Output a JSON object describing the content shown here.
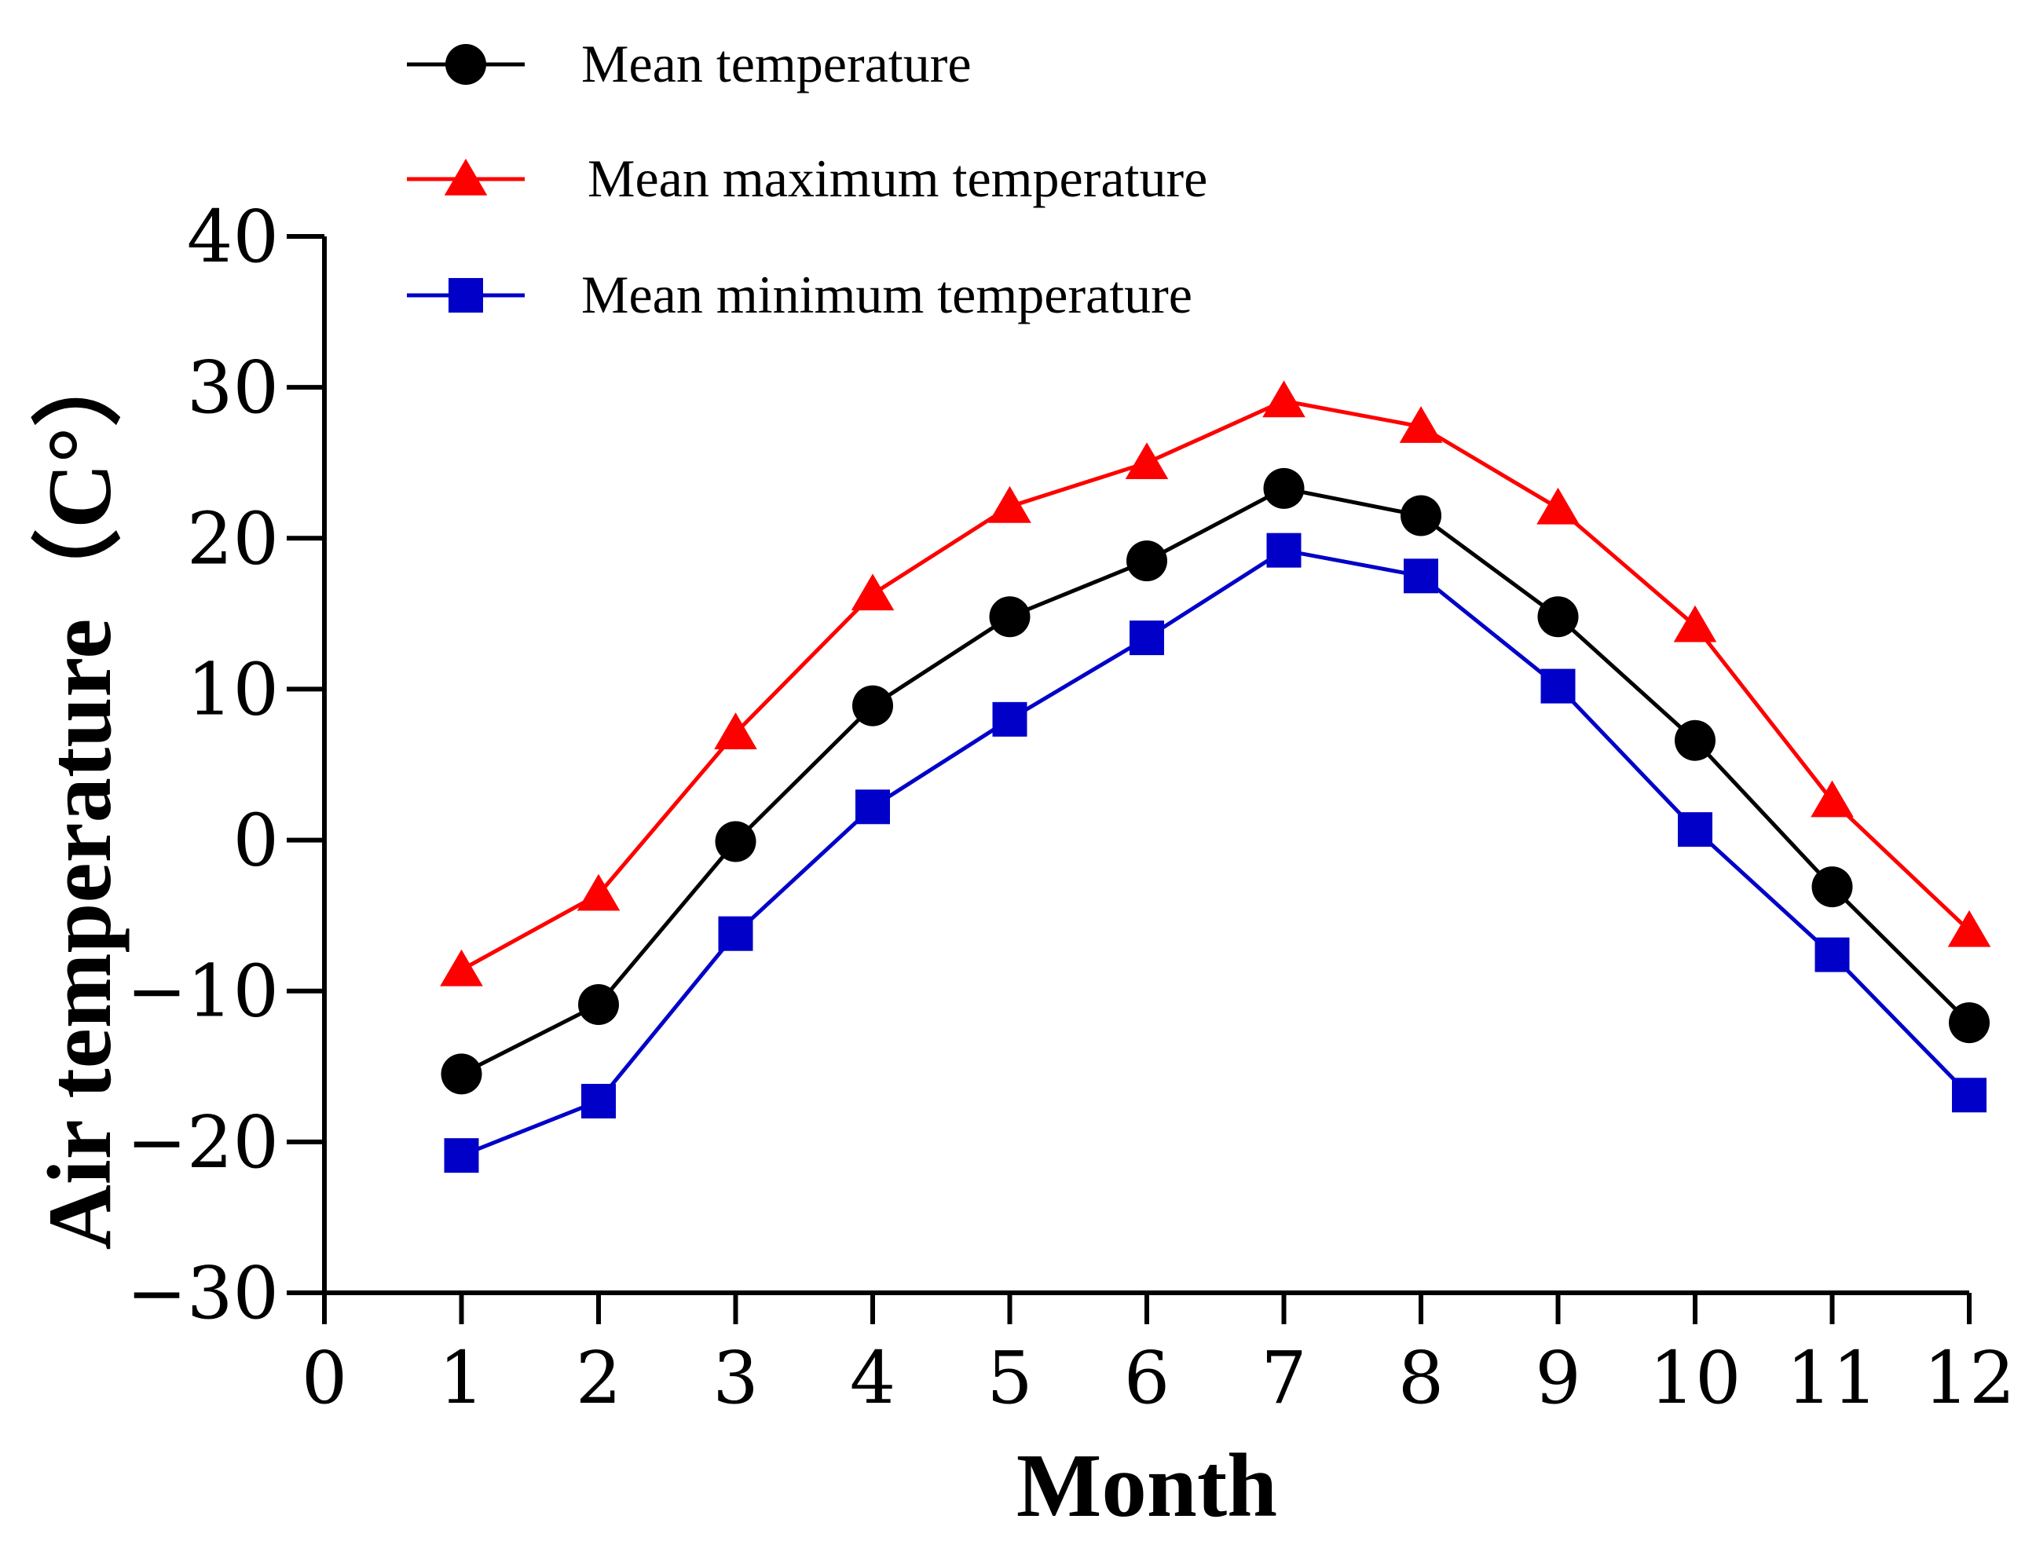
{
  "chart_data": {
    "type": "line",
    "title": "",
    "xlabel": "Month",
    "ylabel": "Air temperature（C°）",
    "xlim": [
      0,
      12
    ],
    "ylim": [
      -30,
      40
    ],
    "xticks": [
      0,
      1,
      2,
      3,
      4,
      5,
      6,
      7,
      8,
      9,
      10,
      11,
      12
    ],
    "yticks": [
      -30,
      -20,
      -10,
      0,
      10,
      20,
      30,
      40
    ],
    "ytick_labels": [
      "−30",
      "−20",
      "−10",
      "0",
      "10",
      "20",
      "30",
      "40"
    ],
    "grid": false,
    "legend_position": "top-left",
    "x": [
      1,
      2,
      3,
      4,
      5,
      6,
      7,
      8,
      9,
      10,
      11,
      12
    ],
    "series": [
      {
        "name": "Mean temperature",
        "color": "#000000",
        "marker": "circle",
        "values": [
          -15.5,
          -10.9,
          -0.1,
          8.9,
          14.8,
          18.5,
          23.3,
          21.5,
          14.8,
          6.6,
          -3.1,
          -12.1
        ]
      },
      {
        "name": "Mean maximum temperature",
        "color": "#ff0000",
        "marker": "triangle",
        "values": [
          -8.6,
          -3.6,
          7.1,
          16.3,
          22.1,
          25.0,
          29.1,
          27.4,
          22.0,
          14.2,
          2.6,
          -6.0
        ]
      },
      {
        "name": "Mean minimum temperature",
        "color": "#0000c8",
        "marker": "square",
        "values": [
          -20.9,
          -17.3,
          -6.2,
          2.2,
          8.0,
          13.4,
          19.2,
          17.5,
          10.2,
          0.7,
          -7.6,
          -16.9
        ]
      }
    ]
  }
}
